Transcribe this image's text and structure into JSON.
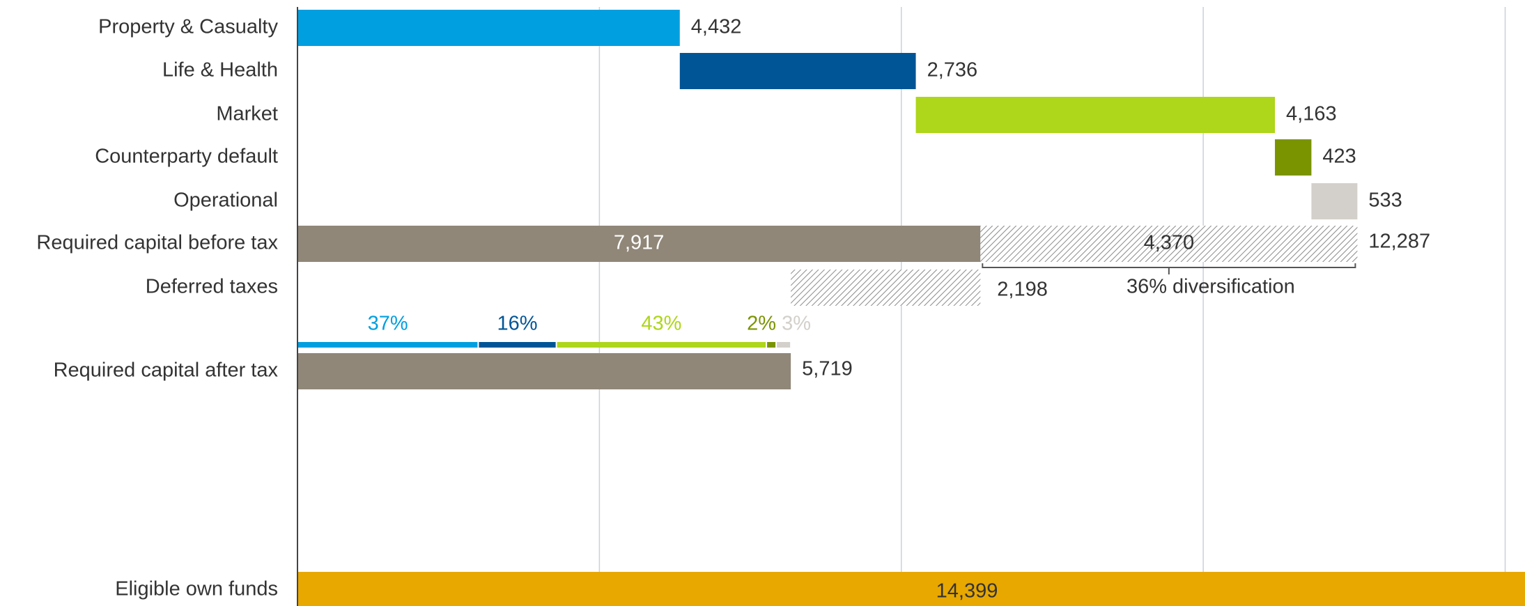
{
  "chart_data": {
    "type": "waterfall",
    "xlim": [
      0,
      14230
    ],
    "xticks": [
      0,
      3500,
      7000,
      10500,
      14000
    ],
    "grid": true,
    "risks": {
      "categories": [
        "Property & Casualty",
        "Life & Health",
        "Market",
        "Counterparty default",
        "Operational"
      ],
      "values": [
        4432,
        2736,
        4163,
        423,
        533
      ],
      "value_labels": [
        "4,432",
        "2,736",
        "4,163",
        "423",
        "533"
      ],
      "colors": [
        "#009fe0",
        "#005596",
        "#aed61a",
        "#7a9400",
        "#d3d0cb"
      ],
      "shares": [
        37,
        16,
        43,
        2,
        3
      ],
      "share_labels": [
        "37%",
        "16%",
        "43%",
        "2%",
        "3%"
      ]
    },
    "before_tax": {
      "label": "Required capital before tax",
      "values": [
        7917,
        4370
      ],
      "value_labels": [
        "7,917",
        "4,370"
      ],
      "total": 12287,
      "total_label": "12,287",
      "color": "#908779"
    },
    "deferred": {
      "label": "Deferred taxes",
      "value": 2198,
      "value_label": "2,198"
    },
    "after_tax": {
      "label": "Required capital after tax",
      "value": 5719,
      "value_label": "5,719",
      "color": "#908779"
    },
    "own_funds": {
      "label": "Eligible own funds",
      "value": 14399,
      "value_label": "14,399",
      "color": "#e8a800"
    },
    "annotation": "36% diversification"
  }
}
